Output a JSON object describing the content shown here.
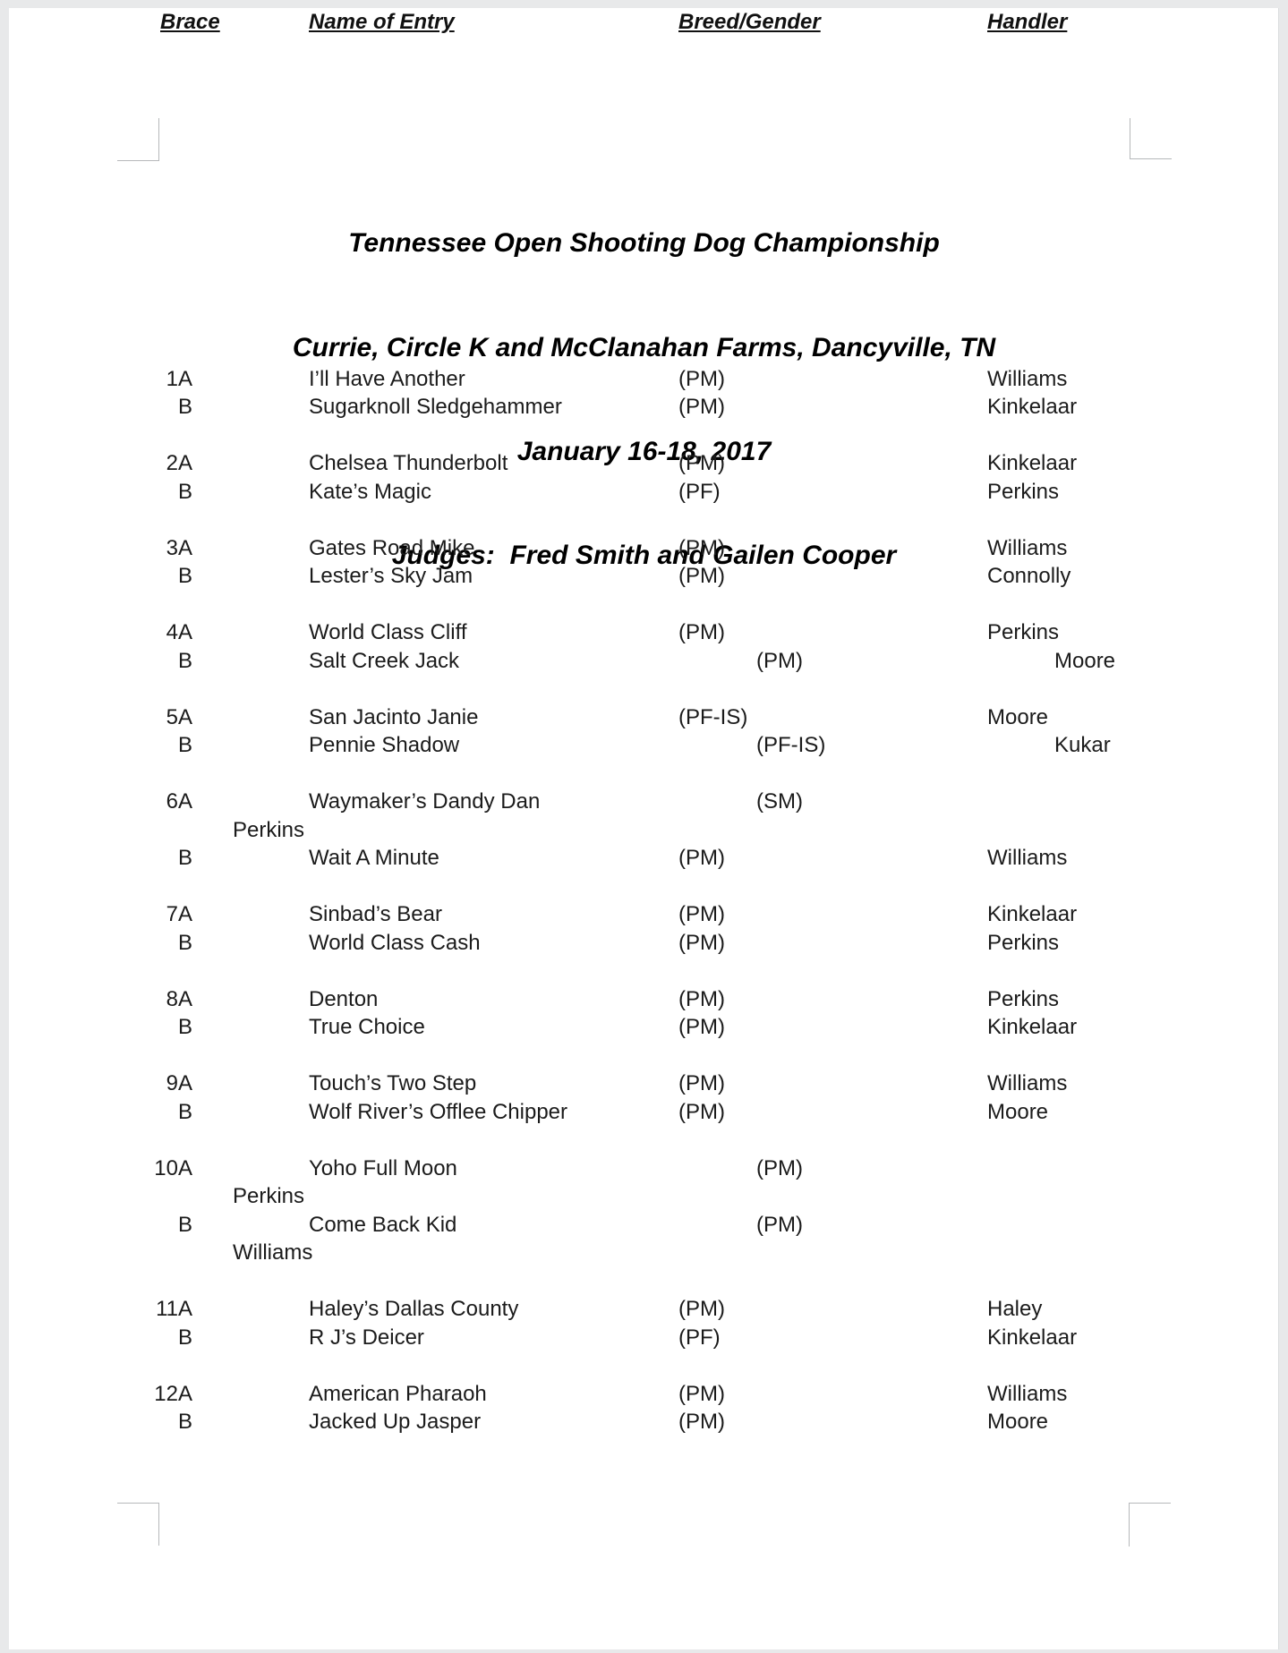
{
  "page": {
    "title_lines": [
      "Tennessee Open Shooting Dog Championship",
      "Currie, Circle K and McClanahan Farms, Dancyville, TN",
      "January 16-18, 2017",
      "Judges:  Fred Smith and Gailen Cooper"
    ],
    "table": {
      "headers": [
        "Brace",
        "Name of Entry",
        "Breed/Gender",
        "Handler"
      ],
      "groups": [
        {
          "entries": [
            {
              "brace": "1A",
              "name": "I’ll Have Another",
              "breed": "(PM)",
              "handler": "Williams"
            },
            {
              "brace": "B",
              "name": "Sugarknoll Sledgehammer",
              "breed": "(PM)",
              "handler": "Kinkelaar"
            }
          ]
        },
        {
          "entries": [
            {
              "brace": "2A",
              "name": "Chelsea Thunderbolt",
              "breed": "(PM)",
              "handler": "Kinkelaar"
            },
            {
              "brace": "B",
              "name": "Kate’s Magic",
              "breed": "(PF)",
              "handler": "Perkins"
            }
          ]
        },
        {
          "entries": [
            {
              "brace": "3A",
              "name": "Gates Road Mike",
              "breed": "(PM)",
              "handler": "Williams"
            },
            {
              "brace": "B",
              "name": "Lester’s Sky Jam",
              "breed": "(PM)",
              "handler": "Connolly"
            }
          ]
        },
        {
          "entries": [
            {
              "brace": "4A",
              "name": "World Class Cliff",
              "breed": "(PM)",
              "handler": "Perkins"
            },
            {
              "brace": "B",
              "name": "Salt Creek Jack",
              "breed": "(PM)",
              "breed_indent": true,
              "handler": "Moore",
              "handler_pos": "indent"
            }
          ]
        },
        {
          "entries": [
            {
              "brace": "5A",
              "name": "San Jacinto Janie",
              "breed": "(PF-IS)",
              "handler": "Moore"
            },
            {
              "brace": "B",
              "name": "Pennie Shadow",
              "breed": "(PF-IS)",
              "breed_indent": true,
              "handler": "Kukar",
              "handler_pos": "indent"
            }
          ]
        },
        {
          "entries": [
            {
              "brace": "6A",
              "name": "Waymaker’s Dandy Dan",
              "breed": "(SM)",
              "breed_indent": true,
              "handler": "Perkins",
              "handler_pos": "nextline"
            },
            {
              "brace": "B",
              "name": "Wait A Minute",
              "breed": "(PM)",
              "handler": "Williams"
            }
          ]
        },
        {
          "entries": [
            {
              "brace": "7A",
              "name": "Sinbad’s Bear",
              "breed": "(PM)",
              "handler": "Kinkelaar"
            },
            {
              "brace": "B",
              "name": "World Class Cash",
              "breed": "(PM)",
              "handler": "Perkins"
            }
          ]
        },
        {
          "entries": [
            {
              "brace": "8A",
              "name": "Denton",
              "breed": "(PM)",
              "handler": "Perkins"
            },
            {
              "brace": "B",
              "name": "True Choice",
              "breed": "(PM)",
              "handler": "Kinkelaar"
            }
          ]
        },
        {
          "entries": [
            {
              "brace": "9A",
              "name": "Touch’s Two Step",
              "breed": "(PM)",
              "handler": "Williams"
            },
            {
              "brace": "B",
              "name": "Wolf River’s Offlee Chipper",
              "breed": "(PM)",
              "handler": "Moore"
            }
          ]
        },
        {
          "entries": [
            {
              "brace": "10A",
              "name": "Yoho Full Moon",
              "breed": "(PM)",
              "breed_indent": true,
              "handler": "Perkins",
              "handler_pos": "nextline"
            },
            {
              "brace": "B",
              "name": "Come Back Kid",
              "breed": "(PM)",
              "breed_indent": true,
              "handler": "Williams",
              "handler_pos": "nextline"
            }
          ]
        },
        {
          "entries": [
            {
              "brace": "11A",
              "name": "Haley’s Dallas County",
              "breed": "(PM)",
              "handler": "Haley"
            },
            {
              "brace": "B",
              "name": "R J’s Deicer",
              "breed": "(PF)",
              "handler": "Kinkelaar"
            }
          ]
        },
        {
          "entries": [
            {
              "brace": "12A",
              "name": "American Pharaoh",
              "breed": "(PM)",
              "handler": "Williams"
            },
            {
              "brace": "B",
              "name": "Jacked Up Jasper",
              "breed": "(PM)",
              "handler": "Moore"
            }
          ]
        }
      ]
    },
    "colors": {
      "canvas_bg": "#e8e9ea",
      "page_bg": "#ffffff",
      "body_text": "#1b1b1b",
      "title_text": "#000000",
      "corner_mark": "#b6b8ba"
    }
  }
}
